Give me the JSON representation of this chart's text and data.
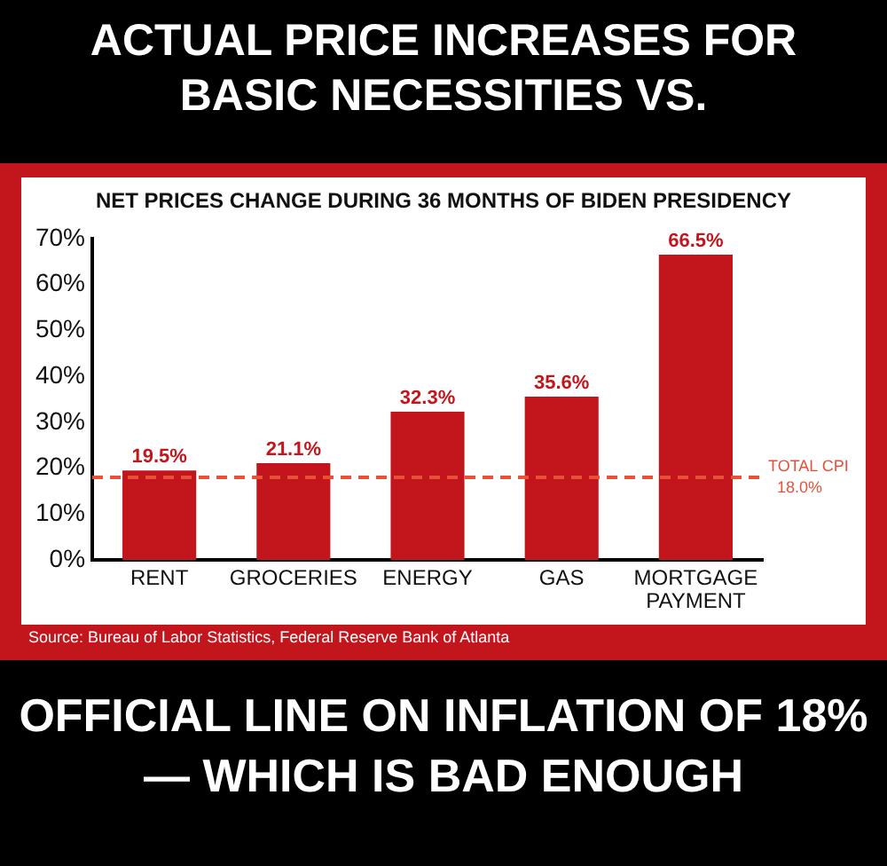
{
  "chart_data": {
    "type": "bar",
    "title": "ACTUAL PRICE INCREASES FOR BASIC NECESSITIES VS.",
    "subtitle": "NET PRICES CHANGE DURING 36 MONTHS OF BIDEN PRESIDENCY",
    "categories": [
      "RENT",
      "GROCERIES",
      "ENERGY",
      "GAS",
      "MORTGAGE PAYMENT"
    ],
    "values": [
      19.5,
      21.1,
      32.3,
      35.6,
      66.5
    ],
    "color": "#c3161c",
    "value_labels": [
      "19.5%",
      "21.1%",
      "32.3%",
      "35.6%",
      "66.5%"
    ],
    "ylim": [
      0,
      70
    ],
    "yticks": [
      {
        "value": 0,
        "label": "0%"
      },
      {
        "value": 10,
        "label": "10%"
      },
      {
        "value": 20,
        "label": "20%"
      },
      {
        "value": 30,
        "label": "30%"
      },
      {
        "value": 40,
        "label": "40%"
      },
      {
        "value": 50,
        "label": "50%"
      },
      {
        "value": 60,
        "label": "60%"
      },
      {
        "value": 70,
        "label": "70%"
      }
    ],
    "ref_lines": [
      {
        "axis": "y",
        "value": 18,
        "label": "TOTAL CPI 18.0%",
        "color": "#e8503a",
        "line_style": "dashed"
      }
    ],
    "annotations": [
      "Source: Bureau of Labor Statistics, Federal Reserve Bank of Atlanta",
      "OFFICIAL LINE ON INFLATION OF 18% — WHICH IS BAD ENOUGH"
    ],
    "grid": false,
    "legend": false
  }
}
